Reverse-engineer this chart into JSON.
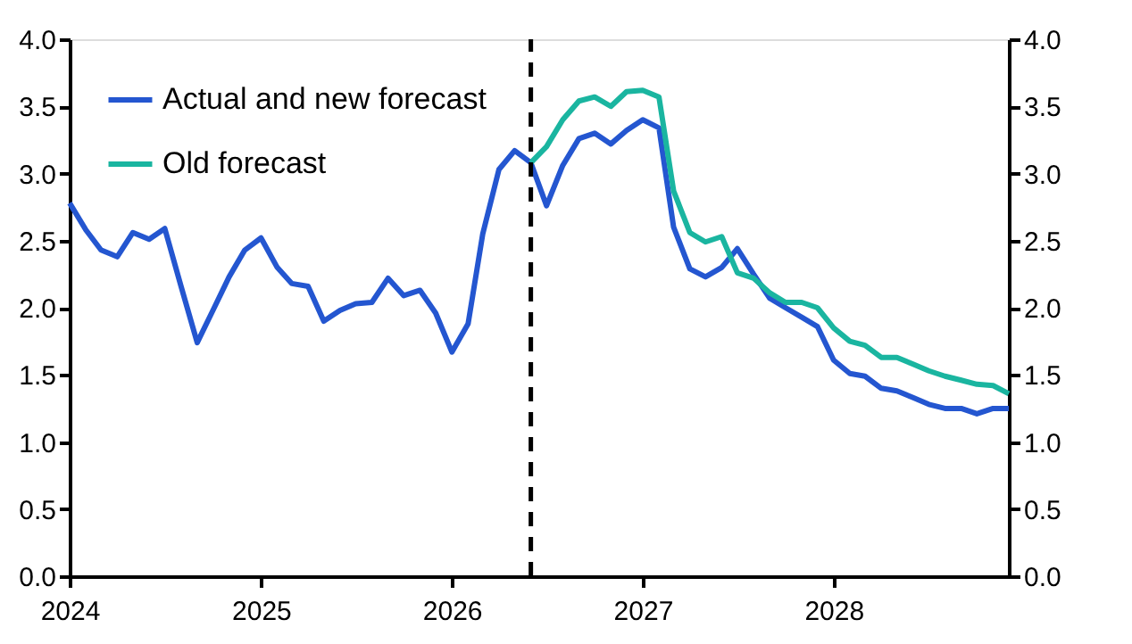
{
  "chart_data": {
    "type": "line",
    "x": [
      "2024-01",
      "2024-02",
      "2024-03",
      "2024-04",
      "2024-05",
      "2024-06",
      "2024-07",
      "2024-08",
      "2024-09",
      "2024-10",
      "2024-11",
      "2024-12",
      "2025-01",
      "2025-02",
      "2025-03",
      "2025-04",
      "2025-05",
      "2025-06",
      "2025-07",
      "2025-08",
      "2025-09",
      "2025-10",
      "2025-11",
      "2025-12",
      "2026-01",
      "2026-02",
      "2026-03",
      "2026-04",
      "2026-05",
      "2026-06",
      "2026-07",
      "2026-08",
      "2026-09",
      "2026-10",
      "2026-11",
      "2026-12",
      "2027-01",
      "2027-02",
      "2027-03",
      "2027-04",
      "2027-05",
      "2027-06",
      "2027-07",
      "2027-08",
      "2027-09",
      "2027-10",
      "2027-11",
      "2027-12",
      "2028-01",
      "2028-02",
      "2028-03",
      "2028-04",
      "2028-05",
      "2028-06",
      "2028-07",
      "2028-08",
      "2028-09",
      "2028-10",
      "2028-11",
      "2028-12"
    ],
    "series": [
      {
        "name": "Actual and new forecast",
        "color": "#2456d0",
        "values": [
          2.78,
          2.58,
          2.43,
          2.38,
          2.56,
          2.51,
          2.59,
          2.16,
          1.74,
          1.98,
          2.23,
          2.43,
          2.52,
          2.3,
          2.18,
          2.16,
          1.9,
          1.98,
          2.03,
          2.04,
          2.22,
          2.09,
          2.13,
          1.96,
          1.67,
          1.88,
          2.55,
          3.03,
          3.17,
          3.08,
          2.76,
          3.06,
          3.26,
          3.3,
          3.22,
          3.32,
          3.4,
          3.34,
          2.6,
          2.29,
          2.23,
          2.3,
          2.44,
          2.25,
          2.07,
          2.0,
          1.93,
          1.86,
          1.61,
          1.51,
          1.49,
          1.4,
          1.38,
          1.33,
          1.28,
          1.25,
          1.25,
          1.21,
          1.25,
          1.25
        ]
      },
      {
        "name": "Old forecast",
        "color": "#1ab5a0",
        "x": [
          "2026-06",
          "2026-07",
          "2026-08",
          "2026-09",
          "2026-10",
          "2026-11",
          "2026-12",
          "2027-01",
          "2027-02",
          "2027-03",
          "2027-04",
          "2027-05",
          "2027-06",
          "2027-07",
          "2027-08",
          "2027-09",
          "2027-10",
          "2027-11",
          "2027-12",
          "2028-01",
          "2028-02",
          "2028-03",
          "2028-04",
          "2028-05",
          "2028-06",
          "2028-07",
          "2028-08",
          "2028-09",
          "2028-10",
          "2028-11",
          "2028-12"
        ],
        "values": [
          3.08,
          3.2,
          3.4,
          3.54,
          3.57,
          3.5,
          3.61,
          3.62,
          3.57,
          2.87,
          2.56,
          2.49,
          2.53,
          2.26,
          2.22,
          2.11,
          2.04,
          2.04,
          2.0,
          1.85,
          1.75,
          1.72,
          1.63,
          1.63,
          1.58,
          1.53,
          1.49,
          1.46,
          1.43,
          1.42,
          1.36
        ]
      }
    ],
    "xlim": [
      "2024-01",
      "2028-12"
    ],
    "xticks": [
      "2024",
      "2025",
      "2026",
      "2027",
      "2028"
    ],
    "ylim": [
      0,
      4
    ],
    "yticks": [
      {
        "value": 0,
        "label": "0.0"
      },
      {
        "value": 0.5,
        "label": "0.5"
      },
      {
        "value": 1,
        "label": "1.0"
      },
      {
        "value": 1.5,
        "label": "1.5"
      },
      {
        "value": 2,
        "label": "2.0"
      },
      {
        "value": 2.5,
        "label": "2.5"
      },
      {
        "value": 3,
        "label": "3.0"
      },
      {
        "value": 3.5,
        "label": "3.5"
      },
      {
        "value": 4,
        "label": "4.0"
      }
    ],
    "y2lim": [
      0,
      4
    ],
    "y2ticks": [
      {
        "value": 0,
        "label": "0.0"
      },
      {
        "value": 0.5,
        "label": "0.5"
      },
      {
        "value": 1,
        "label": "1.0"
      },
      {
        "value": 1.5,
        "label": "1.5"
      },
      {
        "value": 2,
        "label": "2.0"
      },
      {
        "value": 2.5,
        "label": "2.5"
      },
      {
        "value": 3,
        "label": "3.0"
      },
      {
        "value": 3.5,
        "label": "3.5"
      },
      {
        "value": 4,
        "label": "4.0"
      }
    ],
    "ref_lines": [
      {
        "axis": "x",
        "value": "2026-06",
        "color": "#000000",
        "line_style": "dashed"
      }
    ],
    "legend": "top left",
    "grid": false,
    "line_style": "solid"
  }
}
